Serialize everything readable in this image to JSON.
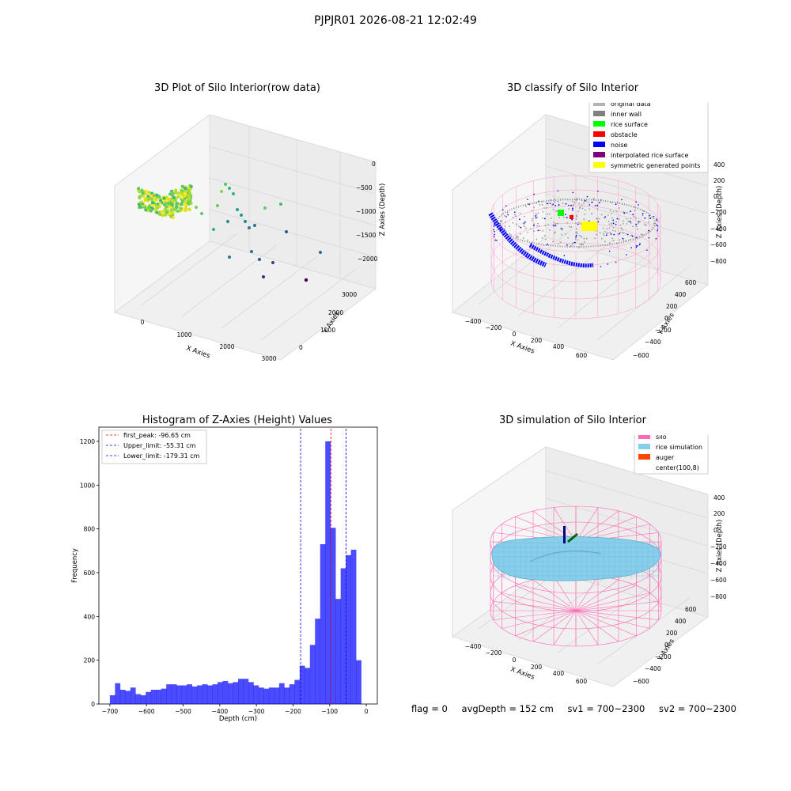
{
  "suptitle": "PJPJR01 2026-08-21 12:02:49",
  "panels": {
    "raw": {
      "title": "3D Plot of Silo Interior(row data)",
      "xlabel": "X Axies",
      "ylabel": "Y Axies",
      "zlabel": "Z Axies (Depth)",
      "xticks": [
        "0",
        "1000",
        "2000",
        "3000"
      ],
      "yticks": [
        "0",
        "1000",
        "2000",
        "3000"
      ],
      "zticks": [
        "0",
        "−500",
        "−1000",
        "−1500",
        "−2000"
      ]
    },
    "classify": {
      "title": "3D classify of Silo Interior",
      "xlabel": "X Axies",
      "ylabel": "Y Axies",
      "zlabel": "Z Axies (Depth)",
      "xticks": [
        "−400",
        "−200",
        "0",
        "200",
        "400",
        "600"
      ],
      "yticks": [
        "−600",
        "−400",
        "−200",
        "0",
        "200",
        "400",
        "600"
      ],
      "zticks": [
        "400",
        "200",
        "0",
        "−200",
        "−400",
        "−600",
        "−800"
      ],
      "legend": [
        {
          "label": "original data",
          "color": "#b3b3b3"
        },
        {
          "label": "inner wall",
          "color": "#808080"
        },
        {
          "label": "rice surface",
          "color": "#00ff00"
        },
        {
          "label": "obstacle",
          "color": "#ff0000"
        },
        {
          "label": "noise",
          "color": "#0000ff"
        },
        {
          "label": "interpolated rice surface",
          "color": "#800080"
        },
        {
          "label": "symmetric generated points",
          "color": "#ffff00"
        }
      ]
    },
    "simulation": {
      "title": "3D simulation of Silo Interior",
      "xlabel": "X Axies",
      "ylabel": "Y Axies",
      "zlabel": "Z Axies (Depth)",
      "xticks": [
        "−400",
        "−200",
        "0",
        "200",
        "400",
        "600"
      ],
      "yticks": [
        "−600",
        "−400",
        "−200",
        "0",
        "200",
        "400",
        "600"
      ],
      "zticks": [
        "400",
        "200",
        "0",
        "−200",
        "−400",
        "−600",
        "−800"
      ],
      "legend": [
        {
          "label": "silo",
          "color": "#ff69b4"
        },
        {
          "label": "rice simulation",
          "color": "#87ceeb"
        },
        {
          "label": "auger",
          "color": "#ff4500"
        },
        {
          "label": "center(100,8)",
          "color": "#ffffff"
        }
      ]
    }
  },
  "footer": {
    "flag": "flag = 0",
    "avg": "avgDepth = 152 cm",
    "sv1": "sv1 = 700~2300",
    "sv2": "sv2 = 700~2300"
  },
  "chart_data": {
    "type": "bar",
    "title": "Histogram of Z-Axies (Height) Values",
    "xlabel": "Depth (cm)",
    "ylabel": "Frequency",
    "xlim": [
      -730,
      30
    ],
    "ylim": [
      0,
      1265
    ],
    "xticks": [
      -700,
      -600,
      -500,
      -400,
      -300,
      -200,
      -100,
      0
    ],
    "yticks": [
      0,
      200,
      400,
      600,
      800,
      1000,
      1200
    ],
    "bin_start": -700,
    "bin_width": 14,
    "values": [
      40,
      95,
      65,
      60,
      75,
      45,
      40,
      55,
      65,
      65,
      70,
      90,
      90,
      85,
      85,
      90,
      80,
      85,
      90,
      85,
      90,
      100,
      105,
      95,
      100,
      115,
      115,
      100,
      85,
      75,
      70,
      75,
      75,
      95,
      75,
      90,
      110,
      175,
      165,
      270,
      390,
      730,
      1200,
      805,
      480,
      620,
      680,
      705,
      200
    ],
    "bar_color": "#0000ff",
    "lines": [
      {
        "label": "first_peak: -96.65 cm",
        "x": -96.65,
        "color": "#ff0000"
      },
      {
        "label": "Upper_limit: -55.31 cm",
        "x": -55.31,
        "color": "#0000ff"
      },
      {
        "label": "Lower_limit: -179.31 cm",
        "x": -179.31,
        "color": "#0000ff"
      }
    ]
  }
}
